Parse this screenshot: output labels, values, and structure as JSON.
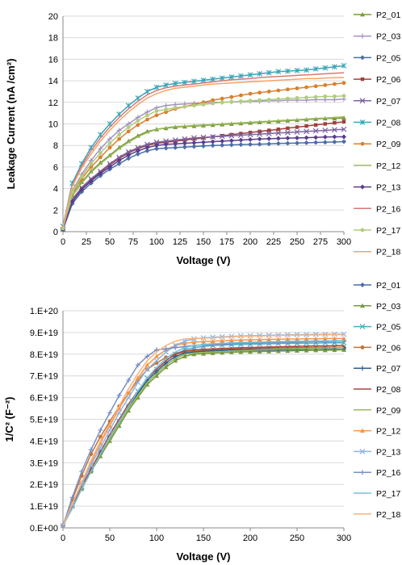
{
  "chart_data": [
    {
      "type": "line",
      "title": "",
      "xlabel": "Voltage (V)",
      "ylabel": "Leakage Current (nA /cm²)",
      "xlim": [
        0,
        300
      ],
      "ylim": [
        0,
        20
      ],
      "xticks": [
        "0",
        "25",
        "50",
        "75",
        "100",
        "125",
        "150",
        "175",
        "200",
        "225",
        "250",
        "275",
        "300"
      ],
      "yticks": [
        "0",
        "2",
        "4",
        "6",
        "8",
        "10",
        "12",
        "14",
        "16",
        "18",
        "20"
      ],
      "grid": true,
      "legend": "right",
      "x": [
        0,
        10,
        20,
        30,
        40,
        50,
        60,
        70,
        80,
        90,
        100,
        110,
        120,
        130,
        140,
        150,
        160,
        170,
        180,
        190,
        200,
        210,
        220,
        230,
        240,
        250,
        260,
        270,
        280,
        290,
        300
      ],
      "series": [
        {
          "name": "P2_01",
          "color": "#7a9a3e",
          "marker": "triangle",
          "values": [
            0.3,
            3.4,
            4.6,
            5.6,
            6.4,
            7.1,
            7.8,
            8.4,
            8.9,
            9.3,
            9.5,
            9.6,
            9.7,
            9.75,
            9.8,
            9.85,
            9.9,
            9.95,
            10.0,
            10.05,
            10.1,
            10.15,
            10.2,
            10.25,
            10.3,
            10.35,
            10.4,
            10.45,
            10.5,
            10.5,
            10.55
          ]
        },
        {
          "name": "P2_03",
          "color": "#a493c4",
          "marker": "plus",
          "values": [
            0.3,
            3.8,
            5.3,
            6.6,
            7.7,
            8.6,
            9.4,
            10.0,
            10.6,
            11.1,
            11.5,
            11.7,
            11.8,
            11.85,
            11.9,
            11.95,
            12.0,
            12.0,
            12.05,
            12.05,
            12.1,
            12.1,
            12.15,
            12.15,
            12.2,
            12.2,
            12.2,
            12.25,
            12.25,
            12.25,
            12.3
          ]
        },
        {
          "name": "P2_05",
          "color": "#4a6ea8",
          "marker": "diamond",
          "values": [
            0.2,
            2.6,
            3.7,
            4.5,
            5.2,
            5.8,
            6.3,
            6.8,
            7.2,
            7.5,
            7.7,
            7.75,
            7.8,
            7.85,
            7.9,
            7.95,
            8.0,
            8.02,
            8.05,
            8.08,
            8.1,
            8.12,
            8.15,
            8.18,
            8.2,
            8.22,
            8.25,
            8.28,
            8.3,
            8.32,
            8.35
          ]
        },
        {
          "name": "P2_06",
          "color": "#a0403c",
          "marker": "square",
          "values": [
            0.2,
            3.0,
            4.0,
            4.8,
            5.5,
            6.2,
            6.8,
            7.3,
            7.7,
            8.0,
            8.2,
            8.3,
            8.4,
            8.5,
            8.6,
            8.7,
            8.8,
            8.9,
            9.0,
            9.1,
            9.2,
            9.3,
            9.4,
            9.5,
            9.6,
            9.7,
            9.8,
            9.9,
            10.0,
            10.1,
            10.2
          ]
        },
        {
          "name": "P2_07",
          "color": "#7c62a0",
          "marker": "x",
          "values": [
            0.2,
            3.0,
            4.1,
            4.9,
            5.6,
            6.3,
            6.9,
            7.4,
            7.8,
            8.1,
            8.3,
            8.4,
            8.5,
            8.6,
            8.7,
            8.75,
            8.8,
            8.85,
            8.9,
            8.95,
            9.0,
            9.05,
            9.1,
            9.15,
            9.2,
            9.25,
            9.3,
            9.35,
            9.4,
            9.45,
            9.5
          ]
        },
        {
          "name": "P2_08",
          "color": "#3aa5b8",
          "marker": "star",
          "values": [
            0.5,
            4.5,
            6.3,
            7.8,
            9.0,
            10.0,
            10.9,
            11.7,
            12.4,
            13.0,
            13.4,
            13.6,
            13.75,
            13.85,
            13.95,
            14.05,
            14.15,
            14.25,
            14.35,
            14.45,
            14.55,
            14.65,
            14.75,
            14.85,
            14.9,
            14.95,
            15.0,
            15.1,
            15.2,
            15.3,
            15.4
          ]
        },
        {
          "name": "P2_09",
          "color": "#d9802e",
          "marker": "circle",
          "values": [
            0.3,
            3.6,
            4.9,
            6.0,
            6.9,
            7.8,
            8.6,
            9.3,
            9.9,
            10.4,
            10.8,
            11.1,
            11.4,
            11.6,
            11.8,
            12.0,
            12.2,
            12.35,
            12.5,
            12.65,
            12.8,
            12.9,
            13.0,
            13.1,
            13.2,
            13.3,
            13.4,
            13.5,
            13.6,
            13.7,
            13.8
          ]
        },
        {
          "name": "P2_12",
          "color": "#9bbb59",
          "marker": "none",
          "values": [
            0.3,
            3.3,
            4.5,
            5.5,
            6.3,
            7.0,
            7.7,
            8.3,
            8.8,
            9.2,
            9.5,
            9.65,
            9.75,
            9.8,
            9.85,
            9.9,
            9.95,
            10.0,
            10.05,
            10.1,
            10.15,
            10.2,
            10.25,
            10.3,
            10.35,
            10.4,
            10.45,
            10.5,
            10.55,
            10.6,
            10.65
          ]
        },
        {
          "name": "P2_13",
          "color": "#5a3d8c",
          "marker": "diamond",
          "values": [
            0.2,
            2.8,
            3.9,
            4.7,
            5.4,
            6.0,
            6.6,
            7.1,
            7.5,
            7.8,
            8.0,
            8.1,
            8.15,
            8.2,
            8.25,
            8.3,
            8.35,
            8.4,
            8.45,
            8.5,
            8.55,
            8.6,
            8.62,
            8.65,
            8.68,
            8.7,
            8.72,
            8.75,
            8.78,
            8.8,
            8.8
          ]
        },
        {
          "name": "P2_16",
          "color": "#d47a78",
          "marker": "none",
          "values": [
            0.4,
            4.3,
            6.1,
            7.5,
            8.7,
            9.7,
            10.6,
            11.4,
            12.1,
            12.7,
            13.1,
            13.35,
            13.5,
            13.6,
            13.7,
            13.8,
            13.9,
            14.0,
            14.1,
            14.15,
            14.2,
            14.3,
            14.35,
            14.4,
            14.45,
            14.5,
            14.55,
            14.6,
            14.65,
            14.7,
            14.75
          ]
        },
        {
          "name": "P2_17",
          "color": "#b0cd7e",
          "marker": "circle",
          "values": [
            0.3,
            3.7,
            5.1,
            6.3,
            7.3,
            8.2,
            9.0,
            9.7,
            10.3,
            10.8,
            11.2,
            11.35,
            11.5,
            11.6,
            11.7,
            11.8,
            11.9,
            12.0,
            12.05,
            12.1,
            12.15,
            12.2,
            12.25,
            12.3,
            12.35,
            12.4,
            12.45,
            12.5,
            12.55,
            12.55,
            12.6
          ]
        },
        {
          "name": "P2_18",
          "color": "#f4a46a",
          "marker": "none",
          "values": [
            0.4,
            4.2,
            5.9,
            7.2,
            8.4,
            9.4,
            10.3,
            11.1,
            11.8,
            12.4,
            12.8,
            13.1,
            13.3,
            13.4,
            13.5,
            13.6,
            13.7,
            13.75,
            13.8,
            13.85,
            13.9,
            13.95,
            14.0,
            14.05,
            14.1,
            14.15,
            14.2,
            14.2,
            14.25,
            14.3,
            14.3
          ]
        }
      ]
    },
    {
      "type": "line",
      "title": "",
      "xlabel": "Voltage (V)",
      "ylabel": "1/C² (F⁻²)",
      "xlim": [
        0,
        300
      ],
      "ylim": [
        0,
        1e+20
      ],
      "xticks": [
        "0",
        "50",
        "100",
        "150",
        "200",
        "250",
        "300"
      ],
      "yticks": [
        "0.E+00",
        "1.E+19",
        "2.E+19",
        "3.E+19",
        "4.E+19",
        "5.E+19",
        "6.E+19",
        "7.E+19",
        "8.E+19",
        "9.E+19",
        "1.E+20"
      ],
      "grid": true,
      "legend": "right",
      "x": [
        0,
        10,
        20,
        30,
        40,
        50,
        60,
        70,
        80,
        90,
        100,
        110,
        120,
        130,
        140,
        150,
        160,
        170,
        180,
        190,
        200,
        210,
        220,
        230,
        240,
        250,
        260,
        270,
        280,
        290,
        300
      ],
      "series": [
        {
          "name": "P2_01",
          "color": "#4a6ea8",
          "marker": "diamond",
          "values": [
            0.1,
            1.0,
            1.8,
            2.6,
            3.4,
            4.1,
            4.8,
            5.5,
            6.2,
            6.7,
            7.1,
            7.5,
            7.8,
            8.0,
            8.05,
            8.08,
            8.1,
            8.12,
            8.14,
            8.15,
            8.16,
            8.17,
            8.18,
            8.19,
            8.2,
            8.2,
            8.21,
            8.21,
            8.22,
            8.22,
            8.22
          ]
        },
        {
          "name": "P2_03",
          "color": "#7a9a3e",
          "marker": "triangle",
          "values": [
            0.1,
            1.0,
            1.8,
            2.6,
            3.3,
            4.0,
            4.7,
            5.4,
            6.0,
            6.6,
            7.0,
            7.4,
            7.7,
            7.9,
            8.0,
            8.02,
            8.05,
            8.07,
            8.09,
            8.1,
            8.11,
            8.12,
            8.13,
            8.14,
            8.15,
            8.16,
            8.17,
            8.18,
            8.18,
            8.19,
            8.2
          ]
        },
        {
          "name": "P2_05",
          "color": "#4bacc6",
          "marker": "x",
          "values": [
            0.1,
            1.0,
            1.9,
            2.7,
            3.5,
            4.2,
            4.9,
            5.6,
            6.3,
            6.9,
            7.3,
            7.7,
            8.0,
            8.2,
            8.3,
            8.35,
            8.4,
            8.42,
            8.44,
            8.45,
            8.46,
            8.47,
            8.48,
            8.49,
            8.5,
            8.5,
            8.51,
            8.51,
            8.52,
            8.52,
            8.52
          ]
        },
        {
          "name": "P2_06",
          "color": "#c0733a",
          "marker": "circle",
          "values": [
            0.1,
            1.3,
            2.4,
            3.4,
            4.2,
            4.9,
            5.6,
            6.2,
            6.8,
            7.3,
            7.6,
            7.85,
            8.0,
            8.1,
            8.15,
            8.18,
            8.2,
            8.22,
            8.24,
            8.25,
            8.26,
            8.27,
            8.28,
            8.29,
            8.3,
            8.3,
            8.31,
            8.31,
            8.32,
            8.32,
            8.32
          ]
        },
        {
          "name": "P2_07",
          "color": "#2f5f8f",
          "marker": "plus",
          "values": [
            0.1,
            1.0,
            1.9,
            2.7,
            3.5,
            4.2,
            4.9,
            5.6,
            6.2,
            6.8,
            7.2,
            7.6,
            7.9,
            8.05,
            8.1,
            8.13,
            8.16,
            8.18,
            8.2,
            8.21,
            8.22,
            8.23,
            8.24,
            8.25,
            8.26,
            8.27,
            8.28,
            8.28,
            8.29,
            8.29,
            8.3
          ]
        },
        {
          "name": "P2_08",
          "color": "#b0443e",
          "marker": "none",
          "values": [
            0.1,
            1.0,
            1.9,
            2.7,
            3.5,
            4.3,
            5.0,
            5.7,
            6.3,
            6.9,
            7.3,
            7.7,
            8.0,
            8.15,
            8.2,
            8.22,
            8.24,
            8.26,
            8.28,
            8.3,
            8.31,
            8.32,
            8.33,
            8.34,
            8.35,
            8.36,
            8.37,
            8.38,
            8.38,
            8.39,
            8.4
          ]
        },
        {
          "name": "P2_09",
          "color": "#9bbb59",
          "marker": "none",
          "values": [
            0.1,
            0.9,
            1.8,
            2.6,
            3.4,
            4.1,
            4.8,
            5.5,
            6.1,
            6.7,
            7.1,
            7.5,
            7.8,
            8.0,
            8.05,
            8.08,
            8.1,
            8.12,
            8.14,
            8.16,
            8.18,
            8.2,
            8.22,
            8.24,
            8.25,
            8.26,
            8.27,
            8.28,
            8.29,
            8.3,
            8.3
          ]
        },
        {
          "name": "P2_12",
          "color": "#f79646",
          "marker": "triangle",
          "values": [
            0.1,
            1.1,
            2.1,
            3.0,
            3.9,
            4.7,
            5.5,
            6.2,
            6.9,
            7.5,
            7.9,
            8.2,
            8.4,
            8.5,
            8.55,
            8.58,
            8.6,
            8.62,
            8.64,
            8.65,
            8.66,
            8.67,
            8.68,
            8.69,
            8.7,
            8.7,
            8.71,
            8.71,
            8.72,
            8.72,
            8.72
          ]
        },
        {
          "name": "P2_13",
          "color": "#8eb4e3",
          "marker": "x",
          "values": [
            0.1,
            1.1,
            2.0,
            2.9,
            3.7,
            4.5,
            5.3,
            6.0,
            6.7,
            7.3,
            7.7,
            8.1,
            8.4,
            8.6,
            8.7,
            8.75,
            8.78,
            8.8,
            8.82,
            8.84,
            8.85,
            8.86,
            8.87,
            8.88,
            8.89,
            8.9,
            8.9,
            8.91,
            8.91,
            8.92,
            8.92
          ]
        },
        {
          "name": "P2_16",
          "color": "#7a8fc9",
          "marker": "plus",
          "values": [
            0.1,
            1.4,
            2.6,
            3.6,
            4.5,
            5.3,
            6.1,
            6.8,
            7.5,
            7.9,
            8.2,
            8.25,
            8.3,
            8.35,
            8.4,
            8.42,
            8.44,
            8.46,
            8.48,
            8.5,
            8.51,
            8.52,
            8.53,
            8.54,
            8.55,
            8.56,
            8.57,
            8.58,
            8.58,
            8.59,
            8.6
          ]
        },
        {
          "name": "P2_17",
          "color": "#74c0d8",
          "marker": "none",
          "values": [
            0.1,
            0.9,
            1.8,
            2.6,
            3.4,
            4.2,
            4.9,
            5.6,
            6.3,
            6.9,
            7.4,
            7.8,
            8.1,
            8.3,
            8.4,
            8.45,
            8.48,
            8.5,
            8.52,
            8.54,
            8.55,
            8.56,
            8.57,
            8.58,
            8.59,
            8.6,
            8.6,
            8.61,
            8.61,
            8.62,
            8.62
          ]
        },
        {
          "name": "P2_18",
          "color": "#f8b27a",
          "marker": "none",
          "values": [
            0.1,
            1.1,
            2.1,
            3.1,
            4.0,
            4.8,
            5.6,
            6.4,
            7.1,
            7.7,
            8.1,
            8.4,
            8.6,
            8.7,
            8.72,
            8.74,
            8.76,
            8.78,
            8.8,
            8.82,
            8.83,
            8.84,
            8.85,
            8.86,
            8.87,
            8.88,
            8.88,
            8.89,
            8.89,
            8.9,
            8.9
          ]
        }
      ],
      "value_scale": 1e+19
    }
  ]
}
